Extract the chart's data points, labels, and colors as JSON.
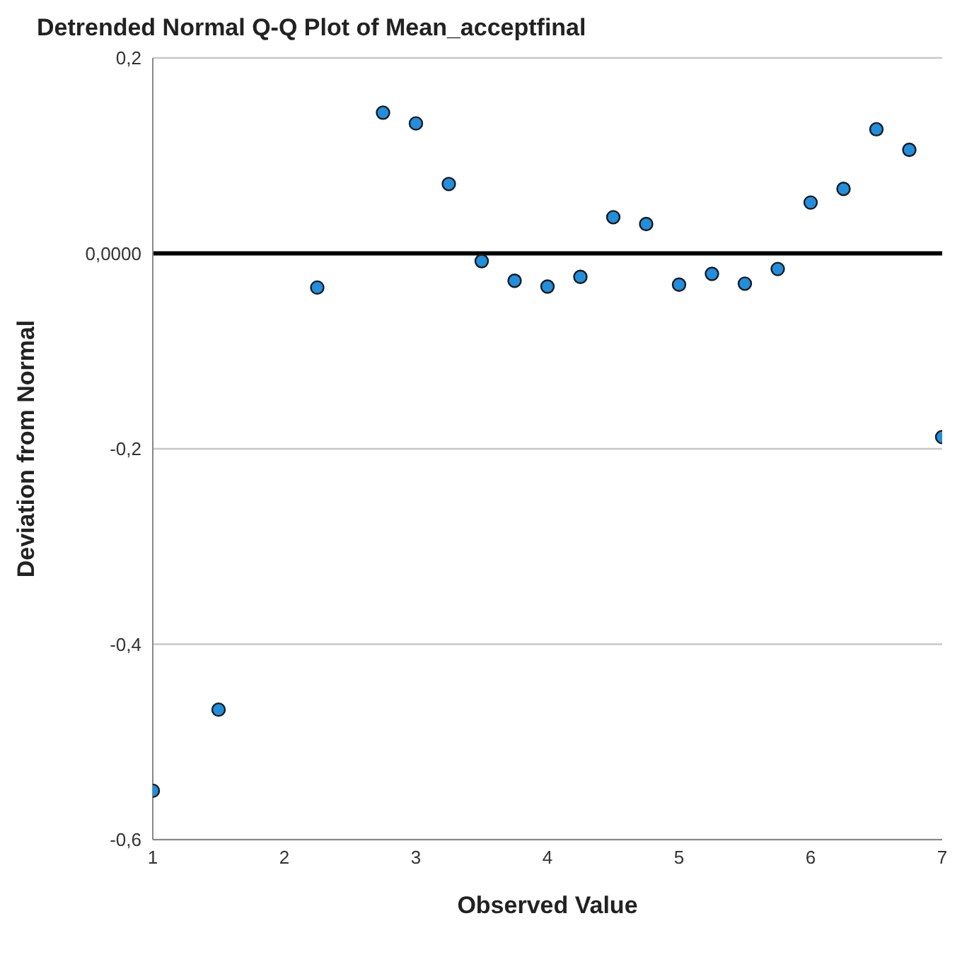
{
  "chart_data": {
    "type": "scatter",
    "title": "Detrended Normal Q-Q Plot of Mean_acceptfinal",
    "xlabel": "Observed Value",
    "ylabel": "Deviation from Normal",
    "x": [
      1,
      1.5,
      2.25,
      2.75,
      3,
      3.25,
      3.5,
      3.75,
      4,
      4.25,
      4.5,
      4.75,
      5,
      5.25,
      5.5,
      5.75,
      6,
      6.25,
      6.5,
      6.75,
      7
    ],
    "series": [
      {
        "color": "#1f8fe0",
        "values": [
          -0.55,
          -0.467,
          -0.035,
          0.144,
          0.133,
          0.071,
          -0.008,
          -0.028,
          -0.034,
          -0.024,
          0.037,
          0.03,
          -0.032,
          -0.021,
          -0.031,
          -0.016,
          0.052,
          0.066,
          0.127,
          0.106,
          -0.188
        ]
      }
    ],
    "xlim": [
      1,
      7
    ],
    "xticks": [
      1,
      2,
      3,
      4,
      5,
      6,
      7
    ],
    "ylim": [
      -0.6,
      0.2
    ],
    "yticks": [
      {
        "value": -0.6,
        "label": "-0,6"
      },
      {
        "value": -0.4,
        "label": "-0,4"
      },
      {
        "value": -0.2,
        "label": "-0,2"
      },
      {
        "value": 0,
        "label": "0,0000"
      },
      {
        "value": 0.2,
        "label": "0,2"
      }
    ],
    "ref_lines": [
      {
        "axis": "y",
        "value": 0,
        "color": "#000000"
      }
    ],
    "grid": "y",
    "legend": false,
    "marker": "circle"
  }
}
